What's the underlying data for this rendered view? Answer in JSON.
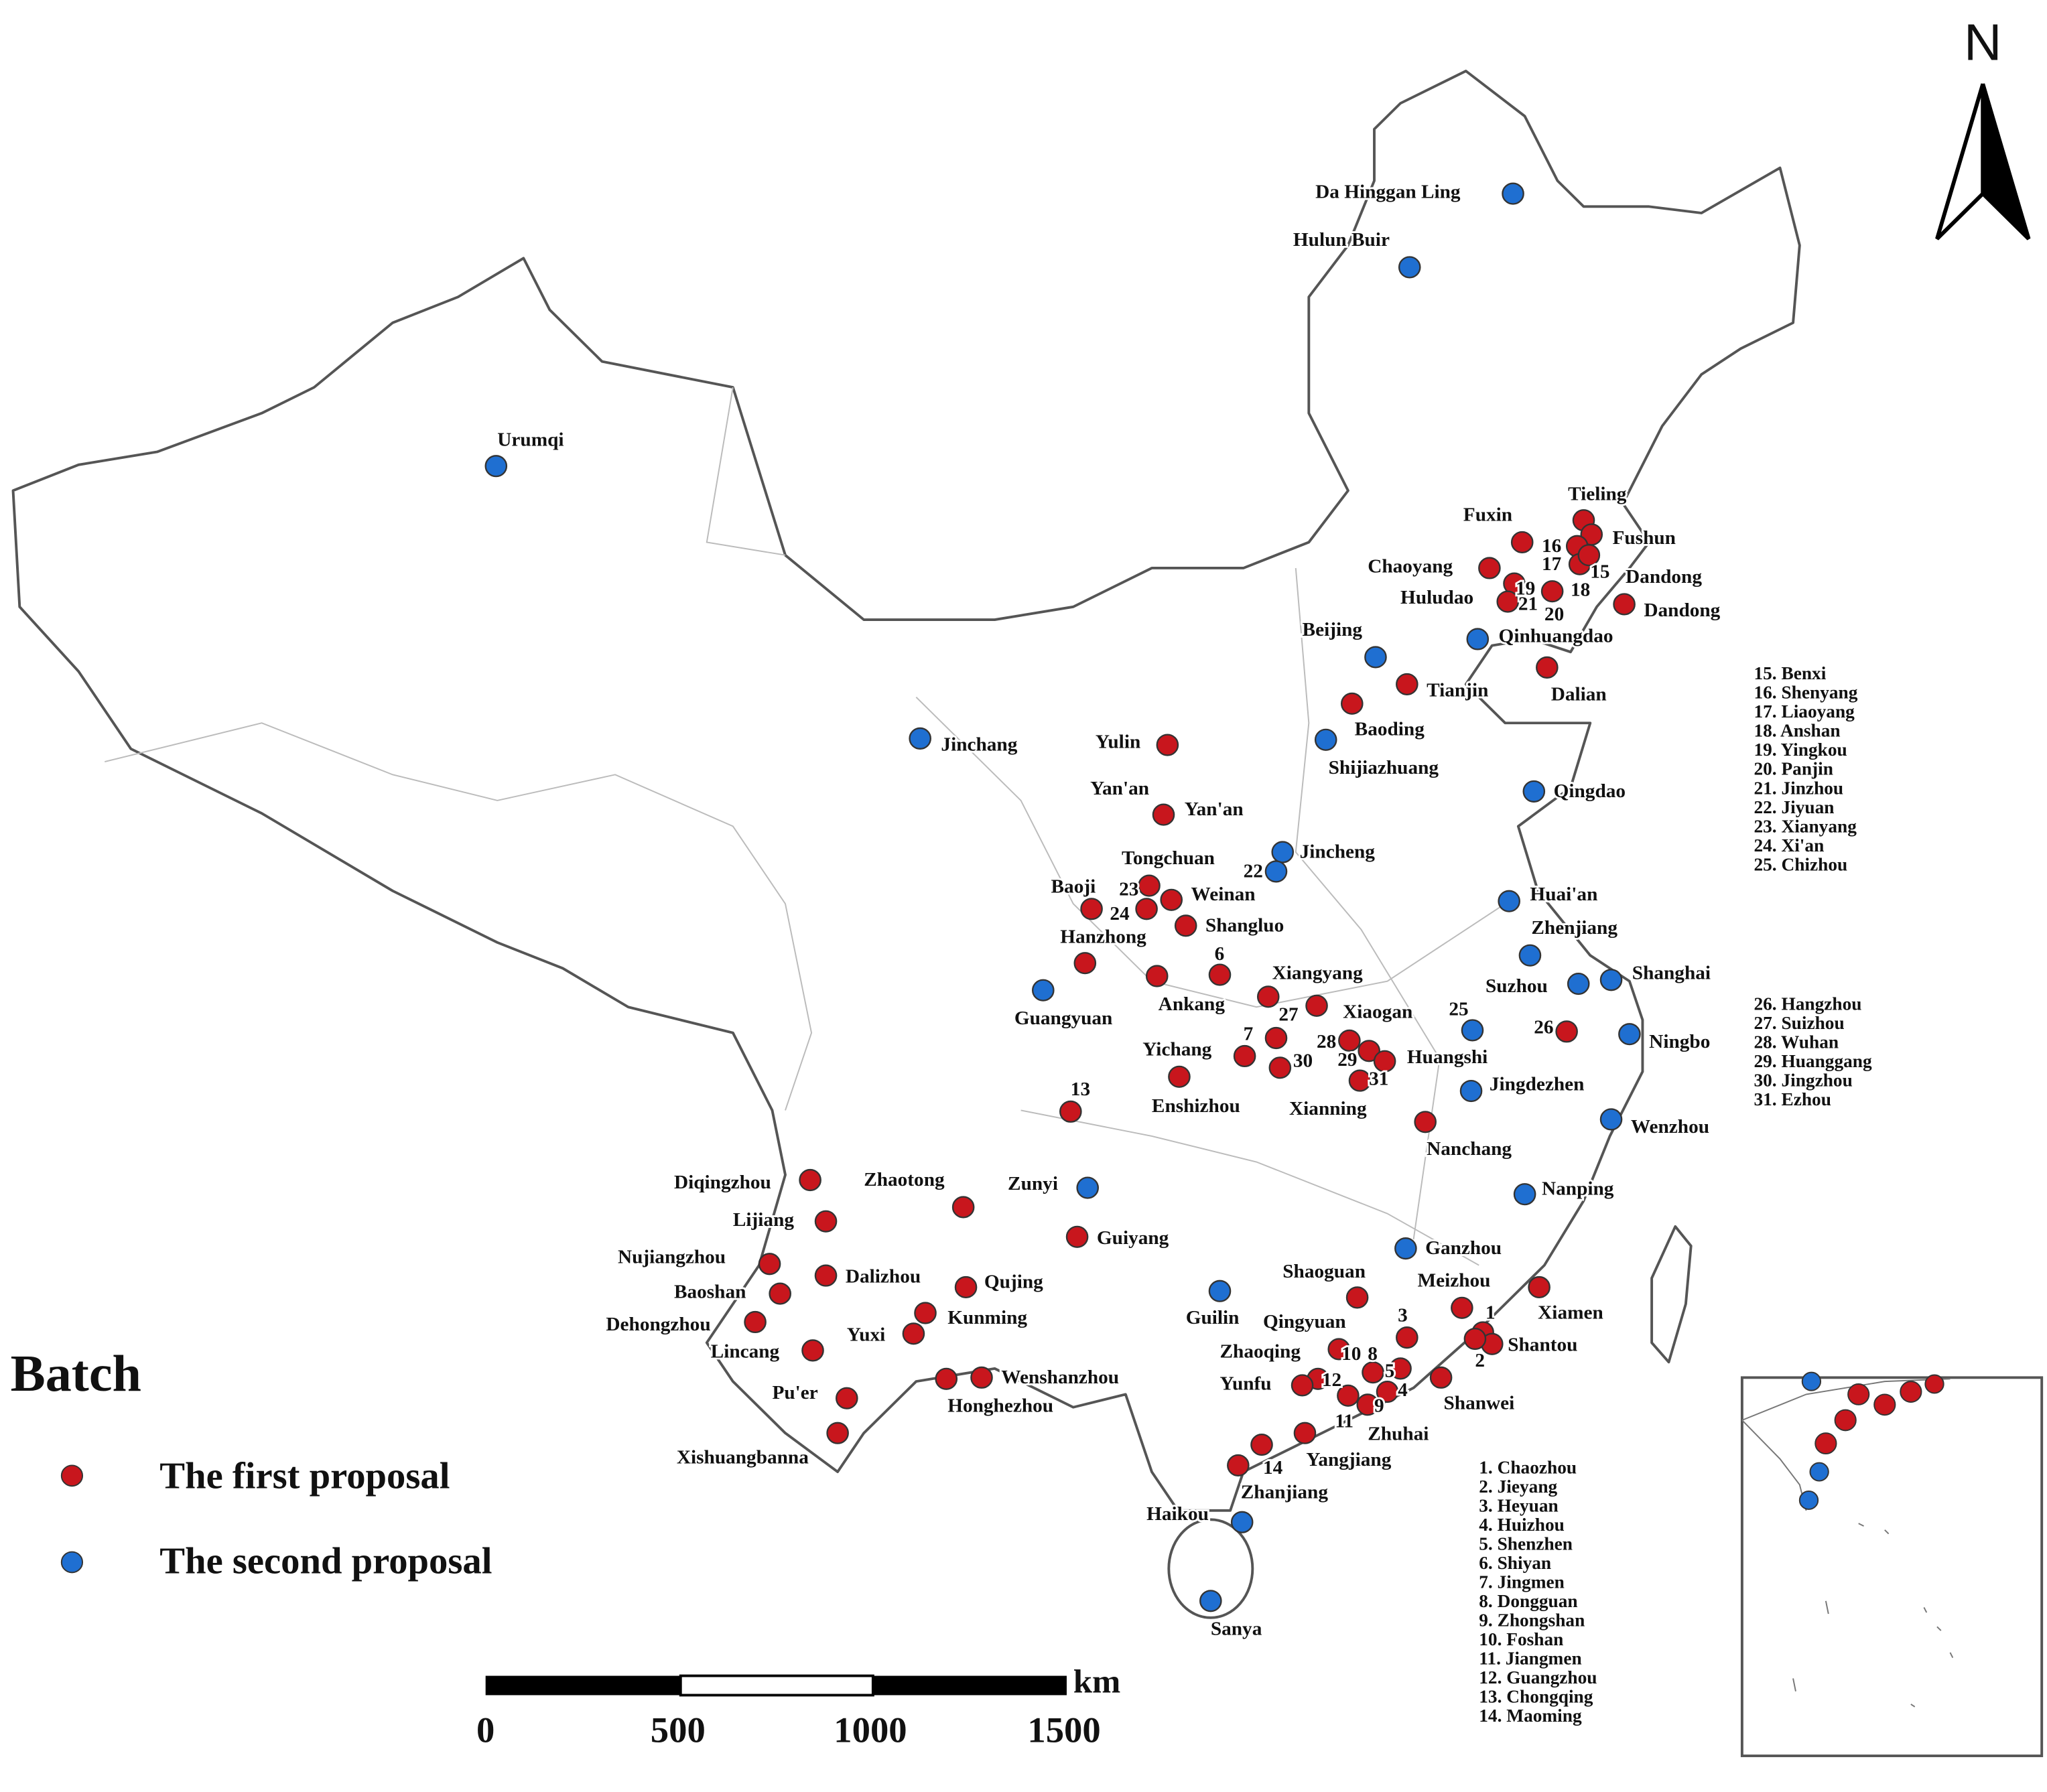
{
  "north": "N",
  "legend": {
    "title": "Batch",
    "items": [
      {
        "label": "The first proposal",
        "color": "#c8161d"
      },
      {
        "label": "The second proposal",
        "color": "#1f6fd1"
      }
    ]
  },
  "points": [
    {
      "label": "Da Hinggan Ling",
      "batch": 1
    },
    {
      "label": "Hulun Buir",
      "batch": 1
    },
    {
      "label": "Urumqi",
      "batch": 1
    },
    {
      "label": "Tieling",
      "batch": 0
    },
    {
      "label": "Fushun",
      "batch": 0
    },
    {
      "label": "Fuxin",
      "batch": 0
    },
    {
      "label": "16",
      "batch": 0
    },
    {
      "label": "17",
      "batch": 0
    },
    {
      "label": "15",
      "batch": 0
    },
    {
      "label": "Chaoyang",
      "batch": 0
    },
    {
      "label": "19",
      "batch": 0
    },
    {
      "label": "Huludao"
    },
    {
      "label": "21",
      "batch": 0
    },
    {
      "label": "18",
      "batch": 0
    },
    {
      "label": "20"
    },
    {
      "label": "Dandong"
    },
    {
      "label": "Dandong",
      "batch": 0
    },
    {
      "label": "Qinhuangdao",
      "batch": 1
    },
    {
      "label": "Beijing",
      "batch": 1
    },
    {
      "label": "Dalian",
      "batch": 0
    },
    {
      "label": "Tianjin",
      "batch": 0
    },
    {
      "label": "Baoding",
      "batch": 0
    },
    {
      "label": "Shijiazhuang",
      "batch": 1
    },
    {
      "label": "Jinchang",
      "batch": 1
    },
    {
      "label": "Yulin",
      "batch": 0
    },
    {
      "label": "Qingdao",
      "batch": 1
    },
    {
      "label": "Yan'an"
    },
    {
      "label": "Yan'an",
      "batch": 0
    },
    {
      "label": "Jincheng",
      "batch": 1
    },
    {
      "label": "22",
      "batch": 1
    },
    {
      "label": "Tongchuan"
    },
    {
      "label": "23",
      "batch": 0
    },
    {
      "label": "24",
      "batch": 0
    },
    {
      "label": "Weinan",
      "batch": 0
    },
    {
      "label": "Baoji",
      "batch": 0
    },
    {
      "label": "Shangluo",
      "batch": 0
    },
    {
      "label": "Huai'an",
      "batch": 1
    },
    {
      "label": "Zhenjiang",
      "batch": 1
    },
    {
      "label": "Hanzhong",
      "batch": 0
    },
    {
      "label": "6",
      "batch": 0
    },
    {
      "label": "Ankang",
      "batch": 0
    },
    {
      "label": "Suzhou",
      "batch": 1
    },
    {
      "label": "Shanghai",
      "batch": 1
    },
    {
      "label": "Xiangyang",
      "batch": 0
    },
    {
      "label": "27",
      "batch": 0
    },
    {
      "label": "Xiaogan"
    },
    {
      "label": "Guangyuan",
      "batch": 1
    },
    {
      "label": "25",
      "batch": 1
    },
    {
      "label": "26",
      "batch": 0
    },
    {
      "label": "Ningbo",
      "batch": 1
    },
    {
      "label": "7",
      "batch": 0
    },
    {
      "label": "28",
      "batch": 0
    },
    {
      "label": "Yichang",
      "batch": 0
    },
    {
      "label": "30",
      "batch": 0
    },
    {
      "label": "29",
      "batch": 0
    },
    {
      "label": "Huangshi",
      "batch": 0
    },
    {
      "label": "31",
      "batch": 0
    },
    {
      "label": "Xianning"
    },
    {
      "label": "Enshizhou",
      "batch": 0
    },
    {
      "label": "Jingdezhen",
      "batch": 1
    },
    {
      "label": "13",
      "batch": 0
    },
    {
      "label": "Nanchang",
      "batch": 0
    },
    {
      "label": "Wenzhou",
      "batch": 1
    },
    {
      "label": "Diqingzhou",
      "batch": 0
    },
    {
      "label": "Zhaotong",
      "batch": 0
    },
    {
      "label": "Zunyi",
      "batch": 1
    },
    {
      "label": "Nanping",
      "batch": 1
    },
    {
      "label": "Lijiang",
      "batch": 0
    },
    {
      "label": "Guiyang",
      "batch": 0
    },
    {
      "label": "Ganzhou",
      "batch": 1
    },
    {
      "label": "Nujiangzhou",
      "batch": 0
    },
    {
      "label": "Dalizhou",
      "batch": 0
    },
    {
      "label": "Qujing",
      "batch": 0
    },
    {
      "label": "Baoshan",
      "batch": 0
    },
    {
      "label": "Shaoguan",
      "batch": 0
    },
    {
      "label": "Meizhou",
      "batch": 0
    },
    {
      "label": "Xiamen",
      "batch": 0
    },
    {
      "label": "Guilin",
      "batch": 1
    },
    {
      "label": "Kunming",
      "batch": 0
    },
    {
      "label": "Dehongzhou",
      "batch": 0
    },
    {
      "label": "Yuxi",
      "batch": 0
    },
    {
      "label": "1",
      "batch": 0
    },
    {
      "label": "3",
      "batch": 0
    },
    {
      "label": "Qingyuan"
    },
    {
      "label": "Shantou",
      "batch": 0
    },
    {
      "label": "2",
      "batch": 0
    },
    {
      "label": "Lincang",
      "batch": 0
    },
    {
      "label": "Zhaoqing"
    },
    {
      "label": "10",
      "batch": 0
    },
    {
      "label": "8",
      "batch": 0
    },
    {
      "label": "5",
      "batch": 0
    },
    {
      "label": "12",
      "batch": 0
    },
    {
      "label": "Yunfu",
      "batch": 0
    },
    {
      "label": "4",
      "batch": 0
    },
    {
      "label": "Shanwei",
      "batch": 0
    },
    {
      "label": "Wenshanzhou",
      "batch": 0
    },
    {
      "label": "Honghezhou",
      "batch": 0
    },
    {
      "label": "Pu'er",
      "batch": 0
    },
    {
      "label": "9",
      "batch": 0
    },
    {
      "label": "11",
      "batch": 0
    },
    {
      "label": "Zhuhai"
    },
    {
      "label": "Xishuangbanna",
      "batch": 0
    },
    {
      "label": "Yangjiang",
      "batch": 0
    },
    {
      "label": "14",
      "batch": 0
    },
    {
      "label": "Zhanjiang",
      "batch": 0
    },
    {
      "label": "Haikou",
      "batch": 1
    },
    {
      "label": "Sanya",
      "batch": 1
    }
  ],
  "key_lists": [
    [
      "15. Benxi",
      "16. Shenyang",
      "17. Liaoyang",
      "18. Anshan",
      "19. Yingkou",
      "20. Panjin",
      "21. Jinzhou",
      "22. Jiyuan",
      "23. Xianyang",
      "24. Xi'an",
      "25. Chizhou"
    ],
    [
      "26. Hangzhou",
      "27. Suizhou",
      "28. Wuhan",
      "29. Huanggang",
      "30. Jingzhou",
      "31. Ezhou"
    ],
    [
      "1. Chaozhou",
      "2. Jieyang",
      "3. Heyuan",
      "4. Huizhou",
      "5. Shenzhen",
      "6. Shiyan",
      "7. Jingmen",
      "8. Dongguan",
      "9. Zhongshan",
      "10. Foshan",
      "11. Jiangmen",
      "12. Guangzhou",
      "13. Chongqing",
      "14. Maoming"
    ]
  ],
  "scale_bar": {
    "unit": "km",
    "ticks": [
      0,
      500,
      1000,
      1500
    ]
  }
}
